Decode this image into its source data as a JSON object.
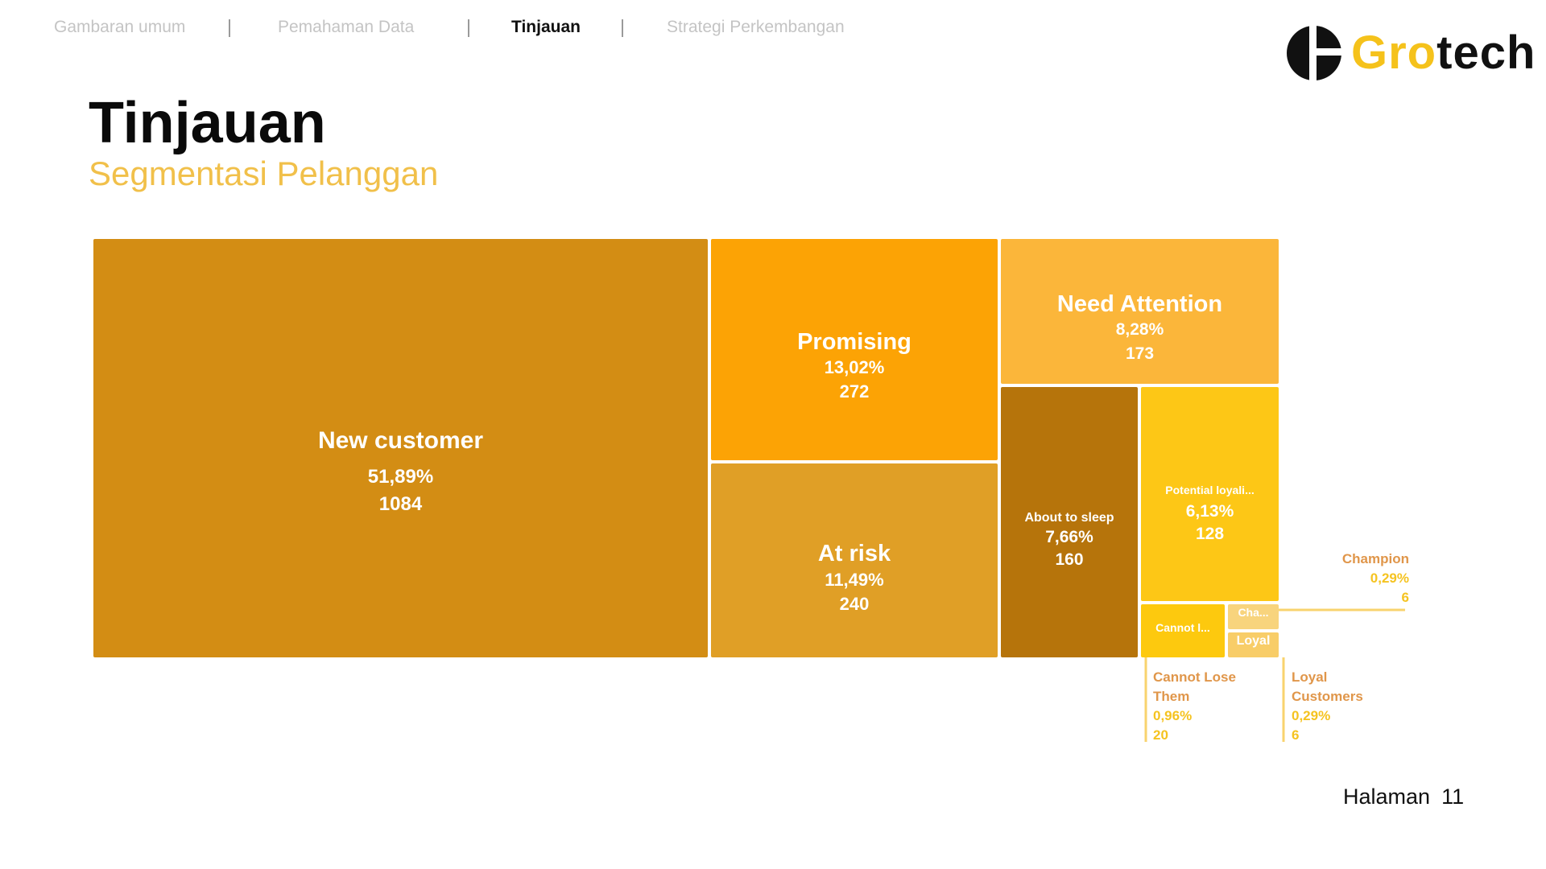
{
  "nav": {
    "items": [
      {
        "label": "Gambaran umum",
        "active": false
      },
      {
        "label": "Pemahaman Data",
        "active": false
      },
      {
        "label": "Tinjauan",
        "active": true
      },
      {
        "label": "Strategi Perkembangan",
        "active": false
      }
    ]
  },
  "logo": {
    "part1": "Gro",
    "part2": "tech"
  },
  "page": {
    "title": "Tinjauan",
    "subtitle": "Segmentasi Pelanggan"
  },
  "footer": {
    "label": "Halaman",
    "number": "11"
  },
  "colors": {
    "new_customer": "#d38d14",
    "promising": "#fca305",
    "at_risk": "#e09f26",
    "need_attention": "#fbb63a",
    "about_to_sleep": "#b6740b",
    "potential_loyalist": "#fdc716",
    "cannot_lose": "#fdc90e",
    "champion": "#f8d47d",
    "loyal": "#f8cd68",
    "callout_name": "#e0964a",
    "callout_value": "#f5c320"
  },
  "chart_data": {
    "type": "treemap",
    "segments": [
      {
        "id": "new_customer",
        "name": "New customer",
        "label": "New customer",
        "percent": "51,89%",
        "count": 1084
      },
      {
        "id": "promising",
        "name": "Promising",
        "label": "Promising",
        "percent": "13,02%",
        "count": 272
      },
      {
        "id": "at_risk",
        "name": "At risk",
        "label": "At risk",
        "percent": "11,49%",
        "count": 240
      },
      {
        "id": "need_attention",
        "name": "Need Attention",
        "label": "Need Attention",
        "percent": "8,28%",
        "count": 173
      },
      {
        "id": "about_to_sleep",
        "name": "About to sleep",
        "label": "About to sleep",
        "percent": "7,66%",
        "count": 160
      },
      {
        "id": "potential_loyalist",
        "name": "Potential loyalist",
        "label": "Potential loyali...",
        "percent": "6,13%",
        "count": 128
      },
      {
        "id": "cannot_lose",
        "name": "Cannot Lose Them",
        "label": "Cannot l...",
        "percent": "0,96%",
        "count": 20
      },
      {
        "id": "champion",
        "name": "Champion",
        "label": "Cha...",
        "percent": "0,29%",
        "count": 6
      },
      {
        "id": "loyal",
        "name": "Loyal Customers",
        "label": "Loyal",
        "percent": "0,29%",
        "count": 6
      }
    ],
    "callouts": [
      {
        "id": "champion",
        "lines": [
          "Champion"
        ],
        "percent": "0,29%",
        "count": "6"
      },
      {
        "id": "cannot_lose",
        "lines": [
          "Cannot Lose",
          "Them"
        ],
        "percent": "0,96%",
        "count": "20"
      },
      {
        "id": "loyal",
        "lines": [
          "Loyal",
          "Customers"
        ],
        "percent": "0,29%",
        "count": "6"
      }
    ]
  }
}
